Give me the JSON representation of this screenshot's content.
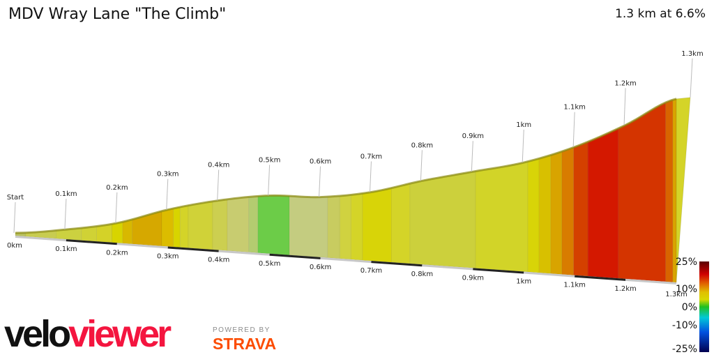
{
  "header": {
    "title": "MDV Wray Lane \"The Climb\"",
    "summary": "1.3 km at 6.6%"
  },
  "branding": {
    "velo": "velo",
    "viewer": "viewer",
    "powered_by": "POWERED BY",
    "strava": "STRAVA"
  },
  "chart_data": {
    "type": "area",
    "title": "MDV Wray Lane \"The Climb\"",
    "xlabel": "",
    "ylabel": "",
    "xlim": [
      0,
      1.3
    ],
    "profile": [
      {
        "km": 0.0,
        "elev": 0
      },
      {
        "km": 0.1,
        "elev": 3.3
      },
      {
        "km": 0.2,
        "elev": 8
      },
      {
        "km": 0.3,
        "elev": 16
      },
      {
        "km": 0.4,
        "elev": 22
      },
      {
        "km": 0.5,
        "elev": 26
      },
      {
        "km": 0.6,
        "elev": 27
      },
      {
        "km": 0.7,
        "elev": 31
      },
      {
        "km": 0.8,
        "elev": 38
      },
      {
        "km": 0.9,
        "elev": 44
      },
      {
        "km": 1.0,
        "elev": 50
      },
      {
        "km": 1.1,
        "elev": 59
      },
      {
        "km": 1.2,
        "elev": 71
      },
      {
        "km": 1.3,
        "elev": 85
      }
    ],
    "segments": [
      {
        "from": 0.0,
        "to": 0.02,
        "color": "#b9c060"
      },
      {
        "from": 0.02,
        "to": 0.08,
        "color": "#c8cc50"
      },
      {
        "from": 0.08,
        "to": 0.13,
        "color": "#ccd140"
      },
      {
        "from": 0.13,
        "to": 0.16,
        "color": "#d0d235"
      },
      {
        "from": 0.16,
        "to": 0.19,
        "color": "#d4d228"
      },
      {
        "from": 0.19,
        "to": 0.211,
        "color": "#d8d400"
      },
      {
        "from": 0.211,
        "to": 0.23,
        "color": "#d8b800"
      },
      {
        "from": 0.23,
        "to": 0.288,
        "color": "#d6a800"
      },
      {
        "from": 0.288,
        "to": 0.311,
        "color": "#dcbc00"
      },
      {
        "from": 0.311,
        "to": 0.324,
        "color": "#d8d400"
      },
      {
        "from": 0.324,
        "to": 0.34,
        "color": "#d4d428"
      },
      {
        "from": 0.34,
        "to": 0.388,
        "color": "#d0d238"
      },
      {
        "from": 0.388,
        "to": 0.417,
        "color": "#cccf50"
      },
      {
        "from": 0.417,
        "to": 0.459,
        "color": "#c8cc70"
      },
      {
        "from": 0.459,
        "to": 0.477,
        "color": "#b4cc70"
      },
      {
        "from": 0.477,
        "to": 0.539,
        "color": "#6ccc48"
      },
      {
        "from": 0.539,
        "to": 0.614,
        "color": "#c4cc80"
      },
      {
        "from": 0.614,
        "to": 0.638,
        "color": "#c8cc60"
      },
      {
        "from": 0.638,
        "to": 0.66,
        "color": "#d0d240"
      },
      {
        "from": 0.66,
        "to": 0.683,
        "color": "#d4d428"
      },
      {
        "from": 0.683,
        "to": 0.74,
        "color": "#d8d408"
      },
      {
        "from": 0.74,
        "to": 0.776,
        "color": "#d4d428"
      },
      {
        "from": 0.776,
        "to": 0.905,
        "color": "#ccd03c"
      },
      {
        "from": 0.905,
        "to": 1.008,
        "color": "#d2d428"
      },
      {
        "from": 1.008,
        "to": 1.03,
        "color": "#d8d408"
      },
      {
        "from": 1.03,
        "to": 1.053,
        "color": "#d8c000"
      },
      {
        "from": 1.053,
        "to": 1.075,
        "color": "#d8a400"
      },
      {
        "from": 1.075,
        "to": 1.098,
        "color": "#d87c00"
      },
      {
        "from": 1.098,
        "to": 1.126,
        "color": "#d44000"
      },
      {
        "from": 1.126,
        "to": 1.186,
        "color": "#d41800"
      },
      {
        "from": 1.186,
        "to": 1.279,
        "color": "#d43400"
      },
      {
        "from": 1.279,
        "to": 1.293,
        "color": "#d86400"
      },
      {
        "from": 1.293,
        "to": 1.3,
        "color": "#d8a400"
      }
    ],
    "end_cap_color": "#d4d428",
    "top_labels": [
      {
        "km": 0.0,
        "text": "Start"
      },
      {
        "km": 0.1,
        "text": "0.1km"
      },
      {
        "km": 0.2,
        "text": "0.2km"
      },
      {
        "km": 0.3,
        "text": "0.3km"
      },
      {
        "km": 0.4,
        "text": "0.4km"
      },
      {
        "km": 0.5,
        "text": "0.5km"
      },
      {
        "km": 0.6,
        "text": "0.6km"
      },
      {
        "km": 0.7,
        "text": "0.7km"
      },
      {
        "km": 0.8,
        "text": "0.8km"
      },
      {
        "km": 0.9,
        "text": "0.9km"
      },
      {
        "km": 1.0,
        "text": "1km"
      },
      {
        "km": 1.1,
        "text": "1.1km"
      },
      {
        "km": 1.2,
        "text": "1.2km"
      },
      {
        "km": 1.3,
        "text": "1.3km"
      }
    ],
    "x_ticks": [
      {
        "km": 0.0,
        "text": "0km"
      },
      {
        "km": 0.1,
        "text": "0.1km"
      },
      {
        "km": 0.2,
        "text": "0.2km"
      },
      {
        "km": 0.3,
        "text": "0.3km"
      },
      {
        "km": 0.4,
        "text": "0.4km"
      },
      {
        "km": 0.5,
        "text": "0.5km"
      },
      {
        "km": 0.6,
        "text": "0.6km"
      },
      {
        "km": 0.7,
        "text": "0.7km"
      },
      {
        "km": 0.8,
        "text": "0.8km"
      },
      {
        "km": 0.9,
        "text": "0.9km"
      },
      {
        "km": 1.0,
        "text": "1km"
      },
      {
        "km": 1.1,
        "text": "1.1km"
      },
      {
        "km": 1.2,
        "text": "1.2km"
      },
      {
        "km": 1.3,
        "text": "1.3km"
      }
    ],
    "legend": {
      "title": "",
      "labels": [
        {
          "value": 25,
          "text": "25%"
        },
        {
          "value": 10,
          "text": "10%"
        },
        {
          "value": 0,
          "text": "0%"
        },
        {
          "value": -10,
          "text": "-10%"
        },
        {
          "value": -25,
          "text": "-25%"
        }
      ],
      "stops": [
        {
          "value": 25,
          "color": "#5a0000"
        },
        {
          "value": 18,
          "color": "#d00000"
        },
        {
          "value": 13,
          "color": "#e06000"
        },
        {
          "value": 8,
          "color": "#e0c000"
        },
        {
          "value": 4,
          "color": "#d8d800"
        },
        {
          "value": 0,
          "color": "#20c020"
        },
        {
          "value": -6,
          "color": "#00c8d8"
        },
        {
          "value": -14,
          "color": "#0050e0"
        },
        {
          "value": -25,
          "color": "#000050"
        }
      ]
    }
  }
}
